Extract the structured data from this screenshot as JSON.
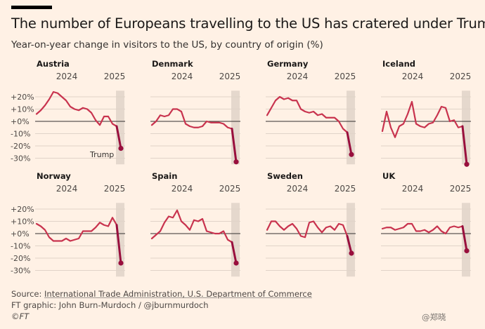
{
  "title": "The number of Europeans travelling to the US has cratered under Trump",
  "subtitle": "Year-on-year change in visitors to the US, by country of origin (%)",
  "annotation": "Trump",
  "source": {
    "label": "Source:",
    "org": "International Trade Administration, U.S. Department of Commerce",
    "credit": "FT graphic: John Burn-Murdoch / @jburnmurdoch",
    "copyright": "©FT"
  },
  "watermark": "@郑晓",
  "colors": {
    "line": "#c8334e",
    "final": "#990f3d",
    "shade": "#e5d8cd",
    "zero": "#33302e",
    "grid": "#e0d3c8",
    "bg": "#fff1e5"
  },
  "chart_data": {
    "type": "line",
    "x_tick_labels": [
      "2024",
      "2025"
    ],
    "y_ticks": [
      20,
      10,
      0,
      -10,
      -20,
      -30
    ],
    "y_tick_labels": [
      "+20%",
      "+10%",
      "+0%",
      "-10%",
      "-20%",
      "-30%"
    ],
    "ylim": [
      -35,
      25
    ],
    "series": [
      {
        "name": "Austria",
        "values": [
          6,
          9,
          13,
          18,
          24,
          23,
          20,
          17,
          12,
          10,
          9,
          11,
          10,
          7,
          1,
          -3,
          4,
          4,
          -2,
          -4,
          -22
        ]
      },
      {
        "name": "Denmark",
        "values": [
          -3,
          0,
          5,
          4,
          5,
          10,
          10,
          8,
          -2,
          -4,
          -5,
          -5,
          -4,
          0,
          -1,
          -1,
          -1,
          -2,
          -5,
          -6,
          -33
        ]
      },
      {
        "name": "Germany",
        "values": [
          5,
          11,
          17,
          20,
          18,
          19,
          17,
          17,
          10,
          8,
          7,
          8,
          5,
          6,
          3,
          3,
          3,
          0,
          -6,
          -9,
          -27
        ]
      },
      {
        "name": "Iceland",
        "values": [
          -8,
          8,
          -5,
          -13,
          -4,
          -2,
          6,
          16,
          -2,
          -4,
          -5,
          -2,
          -1,
          5,
          12,
          11,
          0,
          1,
          -5,
          -4,
          -35
        ]
      },
      {
        "name": "Norway",
        "values": [
          8,
          6,
          3,
          -3,
          -6,
          -6,
          -6,
          -4,
          -6,
          -5,
          -4,
          2,
          2,
          2,
          5,
          9,
          7,
          6,
          13,
          7,
          -24
        ]
      },
      {
        "name": "Spain",
        "values": [
          -4,
          -1,
          2,
          9,
          14,
          13,
          19,
          10,
          7,
          3,
          11,
          10,
          12,
          2,
          1,
          0,
          0,
          2,
          -5,
          -7,
          -24
        ]
      },
      {
        "name": "Sweden",
        "values": [
          3,
          10,
          10,
          6,
          3,
          6,
          8,
          4,
          -2,
          -3,
          9,
          10,
          5,
          1,
          5,
          6,
          3,
          8,
          7,
          -2,
          -16
        ]
      },
      {
        "name": "UK",
        "values": [
          4,
          5,
          5,
          3,
          4,
          5,
          8,
          8,
          2,
          2,
          3,
          1,
          3,
          6,
          2,
          0,
          5,
          6,
          5,
          6,
          -14
        ]
      }
    ]
  }
}
